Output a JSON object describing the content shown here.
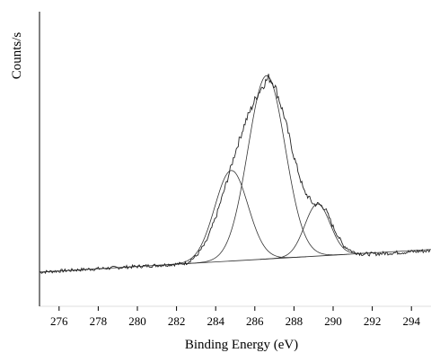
{
  "chart_data": {
    "type": "line",
    "xlabel": "Binding Energy (eV)",
    "ylabel": "Counts/s",
    "xlim": [
      275,
      295
    ],
    "ylim": [
      0,
      100
    ],
    "x_ticks": [
      276,
      278,
      280,
      282,
      284,
      286,
      288,
      290,
      292,
      294
    ],
    "y_ticks_shown": false,
    "grid": false,
    "legend": "none",
    "series": [
      {
        "role": "measured-envelope",
        "style": "solid-noisy",
        "color": "#222222",
        "x": [
          275,
          276,
          277,
          278,
          279,
          280,
          281,
          282,
          282.5,
          283,
          283.5,
          284,
          284.5,
          285,
          285.5,
          286,
          286.3,
          286.7,
          287,
          287.5,
          288,
          288.5,
          289,
          289.3,
          289.6,
          290,
          290.5,
          291,
          291.5,
          292,
          293,
          294,
          295
        ],
        "y": [
          2,
          2.5,
          3,
          3.5,
          4,
          4.5,
          5,
          5.5,
          6,
          9,
          15,
          26,
          40,
          55,
          68,
          78,
          83,
          88,
          85,
          71,
          53,
          38,
          32,
          32,
          30,
          22,
          14,
          11,
          10,
          10,
          10.5,
          11,
          11.5
        ]
      },
      {
        "role": "baseline",
        "style": "solid",
        "color": "#333333",
        "x": [
          275,
          295
        ],
        "y": [
          2,
          12
        ]
      }
    ],
    "components": [
      {
        "center": 284.8,
        "sigma": 0.85,
        "height": 40
      },
      {
        "center": 286.6,
        "sigma": 0.95,
        "height": 81
      },
      {
        "center": 289.2,
        "sigma": 0.65,
        "height": 23
      }
    ]
  }
}
